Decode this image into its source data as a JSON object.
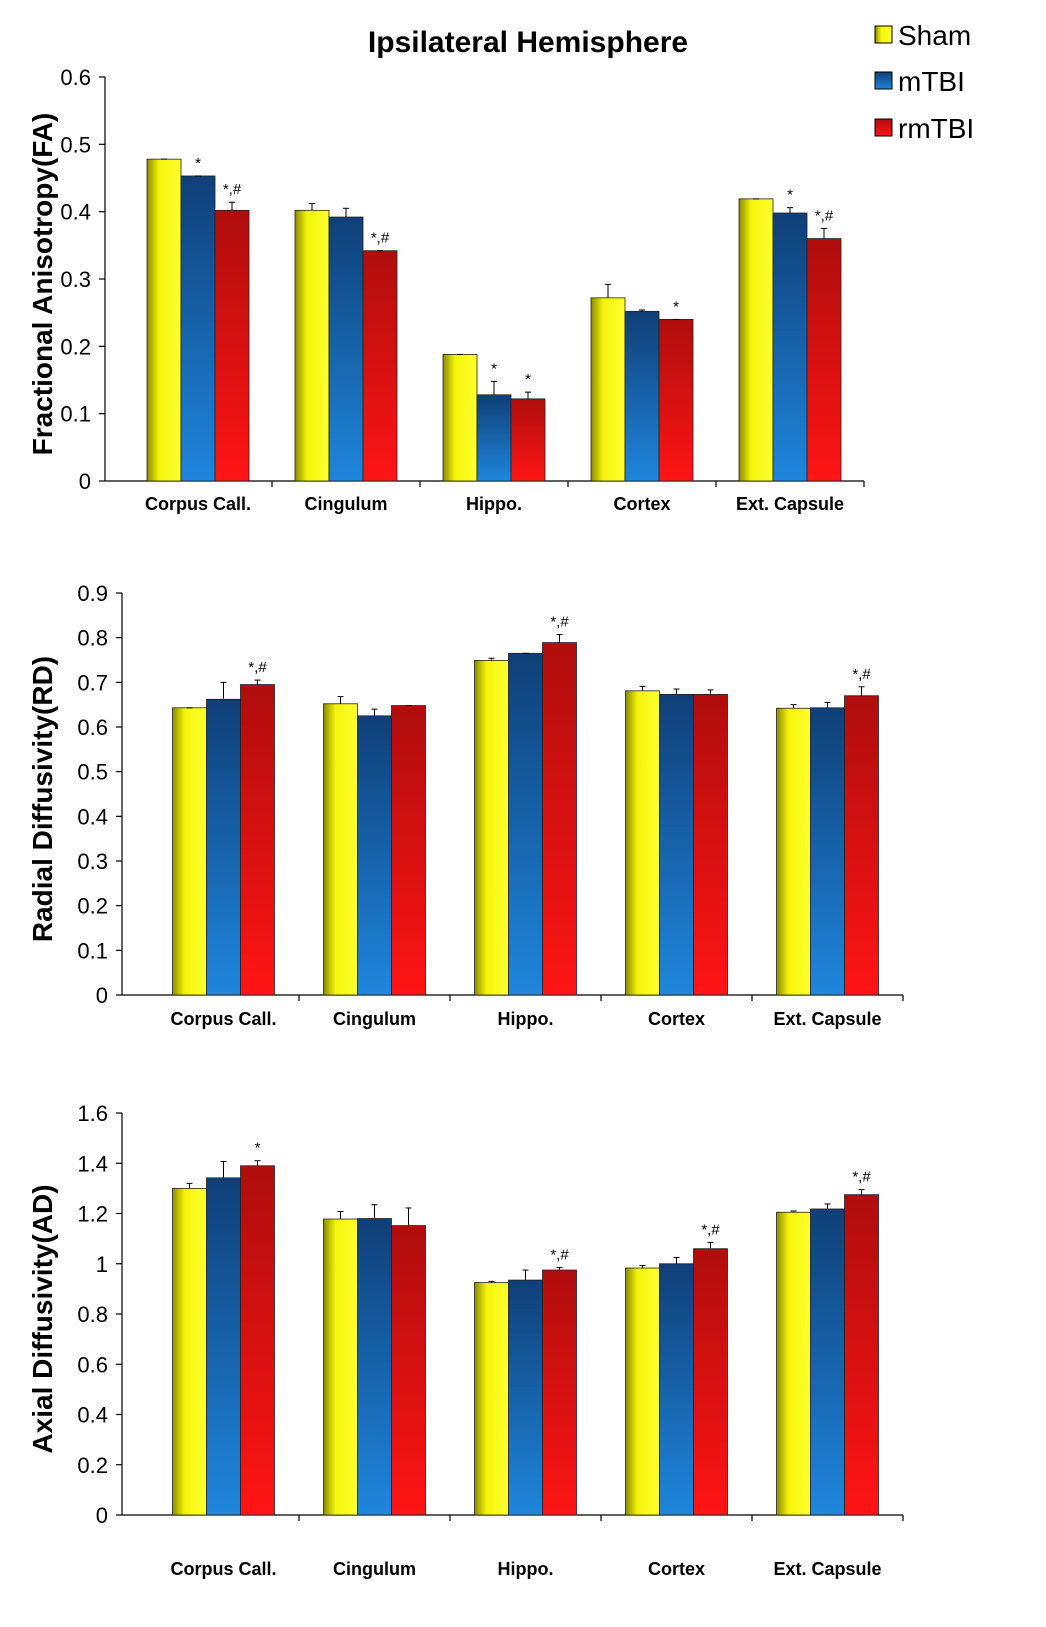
{
  "title": "Ipsilateral Hemisphere",
  "legend": [
    {
      "label": "Sham",
      "color": "#f2f20a"
    },
    {
      "label": "mTBI",
      "color": "#1a5aa8"
    },
    {
      "label": "rmTBI",
      "color": "#e01010"
    }
  ],
  "chart_data": [
    {
      "type": "bar",
      "title": "Ipsilateral Hemisphere",
      "xlabel": "",
      "ylabel": "Fractional Anisotropy(FA)",
      "ylim": [
        0,
        0.6
      ],
      "yticks": [
        "0",
        "0.1",
        "0.2",
        "0.3",
        "0.4",
        "0.5",
        "0.6"
      ],
      "categories": [
        "Corpus Call.",
        "Cingulum",
        "Hippo.",
        "Cortex",
        "Ext. Capsule"
      ],
      "series": [
        {
          "name": "Sham",
          "values": [
            0.478,
            0.402,
            0.188,
            0.272,
            0.419
          ],
          "errors": [
            0,
            0.01,
            0,
            0.02,
            0
          ]
        },
        {
          "name": "mTBI",
          "values": [
            0.453,
            0.392,
            0.128,
            0.252,
            0.398
          ],
          "errors": [
            0,
            0.013,
            0.02,
            0.002,
            0.008
          ]
        },
        {
          "name": "rmTBI",
          "values": [
            0.402,
            0.342,
            0.122,
            0.24,
            0.36
          ],
          "errors": [
            0.012,
            0,
            0.01,
            0,
            0.015
          ]
        }
      ],
      "annotations": [
        {
          "category": 0,
          "series": 1,
          "text": "*"
        },
        {
          "category": 0,
          "series": 2,
          "text": "*,#"
        },
        {
          "category": 1,
          "series": 2,
          "text": "*,#"
        },
        {
          "category": 2,
          "series": 1,
          "text": "*"
        },
        {
          "category": 2,
          "series": 2,
          "text": "*"
        },
        {
          "category": 3,
          "series": 2,
          "text": "*"
        },
        {
          "category": 4,
          "series": 1,
          "text": "*"
        },
        {
          "category": 4,
          "series": 2,
          "text": "*,#"
        }
      ]
    },
    {
      "type": "bar",
      "title": "",
      "xlabel": "",
      "ylabel": "Radial Diffusivity(RD)",
      "ylim": [
        0,
        0.9
      ],
      "yticks": [
        "0",
        "0.1",
        "0.2",
        "0.3",
        "0.4",
        "0.5",
        "0.6",
        "0.7",
        "0.8",
        "0.9"
      ],
      "categories": [
        "Corpus Call.",
        "Cingulum",
        "Hippo.",
        "Cortex",
        "Ext. Capsule"
      ],
      "series": [
        {
          "name": "Sham",
          "values": [
            0.643,
            0.652,
            0.749,
            0.681,
            0.642
          ],
          "errors": [
            0,
            0.016,
            0.005,
            0.01,
            0.008
          ]
        },
        {
          "name": "mTBI",
          "values": [
            0.662,
            0.625,
            0.765,
            0.673,
            0.643
          ],
          "errors": [
            0.038,
            0.015,
            0,
            0.012,
            0.012
          ]
        },
        {
          "name": "rmTBI",
          "values": [
            0.695,
            0.648,
            0.789,
            0.673,
            0.67
          ],
          "errors": [
            0.01,
            0,
            0.018,
            0.01,
            0.02
          ]
        }
      ],
      "annotations": [
        {
          "category": 0,
          "series": 2,
          "text": "*,#"
        },
        {
          "category": 2,
          "series": 2,
          "text": "*,#"
        },
        {
          "category": 4,
          "series": 2,
          "text": "*,#"
        }
      ]
    },
    {
      "type": "bar",
      "title": "",
      "xlabel": "",
      "ylabel": "Axial Diffusivity(AD)",
      "ylim": [
        0,
        1.6
      ],
      "yticks": [
        "0",
        "0.2",
        "0.4",
        "0.6",
        "0.8",
        "1",
        "1.2",
        "1.4",
        "1.6"
      ],
      "categories": [
        "Corpus Call.",
        "Cingulum",
        "Hippo.",
        "Cortex",
        "Ext. Capsule"
      ],
      "series": [
        {
          "name": "Sham",
          "values": [
            1.3,
            1.178,
            0.925,
            0.983,
            1.205
          ],
          "errors": [
            0.02,
            0.03,
            0.005,
            0.01,
            0.005
          ]
        },
        {
          "name": "mTBI",
          "values": [
            1.342,
            1.18,
            0.935,
            1.0,
            1.218
          ],
          "errors": [
            0.065,
            0.055,
            0.04,
            0.025,
            0.02
          ]
        },
        {
          "name": "rmTBI",
          "values": [
            1.39,
            1.152,
            0.975,
            1.06,
            1.275
          ],
          "errors": [
            0.02,
            0.07,
            0.01,
            0.025,
            0.02
          ]
        }
      ],
      "annotations": [
        {
          "category": 0,
          "series": 2,
          "text": "*"
        },
        {
          "category": 2,
          "series": 2,
          "text": "*,#"
        },
        {
          "category": 3,
          "series": 2,
          "text": "*,#"
        },
        {
          "category": 4,
          "series": 2,
          "text": "*,#"
        }
      ]
    }
  ]
}
